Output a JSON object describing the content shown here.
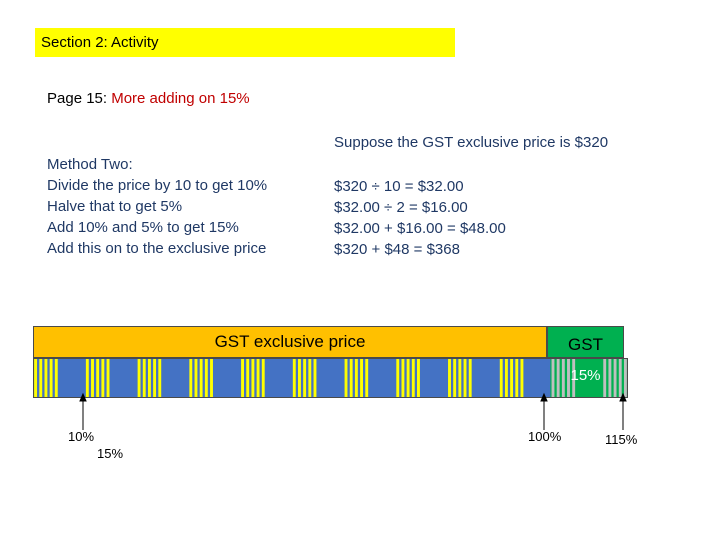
{
  "section": {
    "title": "Section 2: Activity"
  },
  "page": {
    "prefix": "Page 15: ",
    "highlight": "More adding on 15%"
  },
  "suppose": "Suppose the GST exclusive price is $320",
  "method_lines": [
    "Method Two:",
    "Divide the price by 10 to get 10%",
    "Halve that to get 5%",
    "Add 10% and 5% to get 15%",
    "Add this on to the exclusive price"
  ],
  "calc_lines": [
    "$320 ÷ 10 = $32.00",
    "$32.00 ÷ 2 = $16.00",
    "$32.00 + $16.00  = $48.00",
    "$320 + $48 = $368"
  ],
  "bars": {
    "exclusive_label": "GST exclusive price",
    "gst_label": "GST",
    "gst_percent": "15%"
  },
  "markers": {
    "m10": "10%",
    "m15": "15%",
    "m100": "100%",
    "m115": "115%"
  },
  "colors": {
    "banner": "#ffff00",
    "exclusive_bar": "#ffc000",
    "gst_bar": "#00b050",
    "stripe_blue": "#4472c4",
    "stripe_yellow": "#ffff00",
    "stripe_green": "#00b050",
    "text": "#1f3864",
    "highlight": "#c00000"
  }
}
